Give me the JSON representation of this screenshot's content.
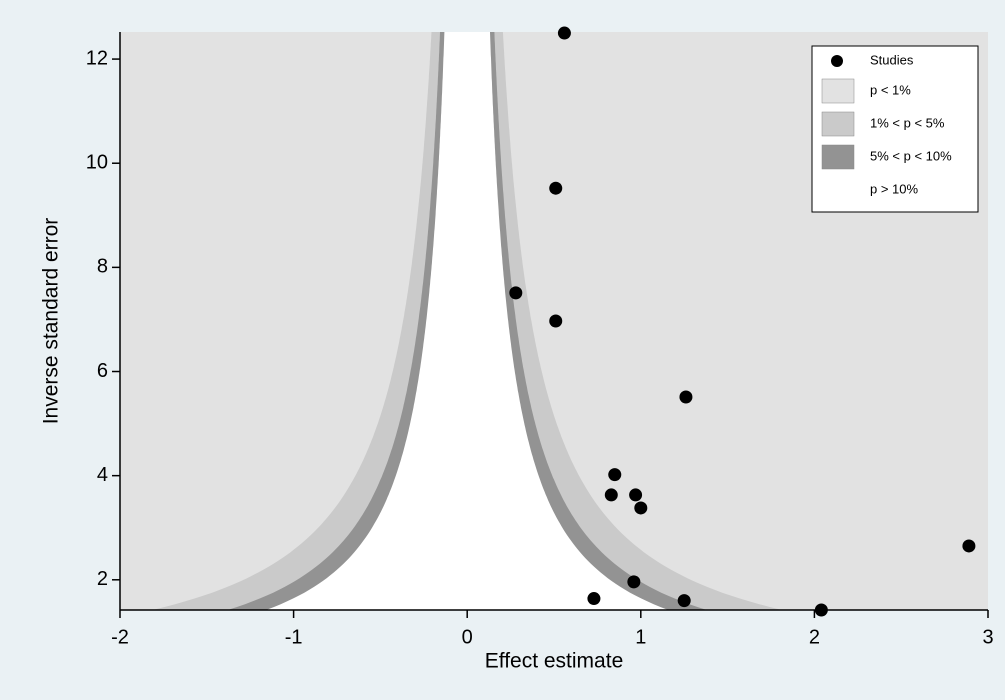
{
  "chart_data": {
    "type": "scatter",
    "x_label": "Effect estimate",
    "y_label": "Inverse standard error",
    "xlim": [
      -2,
      3
    ],
    "ylim": [
      1.42,
      12.52
    ],
    "xticks": [
      -2,
      -1,
      0,
      1,
      2,
      3
    ],
    "yticks": [
      2,
      4,
      6,
      8,
      10,
      12
    ],
    "legend": "top-right",
    "series": [
      {
        "name": "Studies",
        "color": "#000000",
        "x": [
          0.56,
          0.51,
          0.28,
          0.51,
          1.26,
          0.85,
          0.83,
          0.97,
          1.0,
          2.89,
          0.96,
          0.73,
          1.25,
          2.04
        ],
        "values": [
          12.5,
          9.52,
          7.51,
          6.97,
          5.51,
          4.02,
          3.63,
          3.63,
          3.38,
          2.65,
          1.96,
          1.64,
          1.6,
          1.42
        ]
      }
    ],
    "contours": [
      {
        "name": "p < 1%",
        "color": "#e2e2e2"
      },
      {
        "name": "1% < p < 5%",
        "color": "#cacaca",
        "level": 1
      },
      {
        "name": "5% < p < 10%",
        "color": "#939393",
        "level": 5
      },
      {
        "name": "p > 10%",
        "color": "#ffffff",
        "level": 10
      }
    ]
  }
}
